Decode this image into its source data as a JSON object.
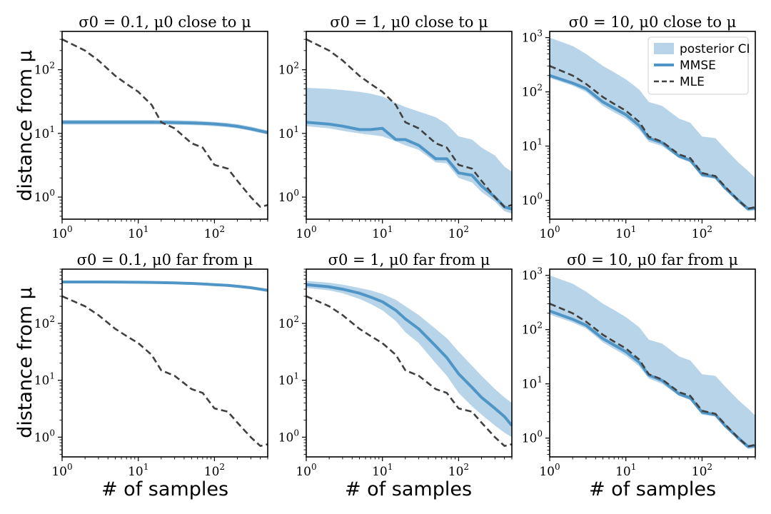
{
  "figure": {
    "ylabel": "distance from μ",
    "xlabel": "# of samples"
  },
  "colors": {
    "ci_fill": "#b7d4e8",
    "mmse": "#4f95c6",
    "mle": "#404040",
    "axes": "#000000"
  },
  "legend": {
    "placement": "top-right of panel 3",
    "entries": [
      {
        "label": "posterior CI",
        "kind": "band"
      },
      {
        "label": "MMSE",
        "kind": "line"
      },
      {
        "label": "MLE",
        "kind": "dashed"
      }
    ]
  },
  "chart_data": [
    {
      "type": "line",
      "log_x": true,
      "log_y": true,
      "title": "σ0 = 0.1, μ0 close to μ",
      "xlim": [
        1,
        500
      ],
      "ylim": [
        0.45,
        400
      ],
      "xticks": [
        "10^0",
        "10^1",
        "10^2"
      ],
      "yticks": [
        "10^0",
        "10^1",
        "10^2"
      ],
      "x": [
        1,
        2,
        3,
        5,
        7,
        10,
        15,
        20,
        30,
        50,
        70,
        100,
        150,
        200,
        300,
        400,
        500
      ],
      "series": [
        {
          "name": "posterior CI",
          "kind": "band",
          "lower": [
            13.8,
            13.8,
            13.8,
            13.8,
            13.8,
            13.8,
            13.8,
            13.8,
            13.7,
            13.5,
            13.3,
            13.0,
            12.5,
            12.0,
            11.0,
            10.2,
            9.6
          ],
          "upper": [
            16.3,
            16.3,
            16.3,
            16.3,
            16.3,
            16.3,
            16.3,
            16.2,
            16.1,
            15.9,
            15.6,
            15.2,
            14.6,
            14.0,
            12.8,
            11.8,
            11.1
          ]
        },
        {
          "name": "MMSE",
          "kind": "line",
          "values": [
            15,
            15,
            15,
            15,
            15,
            15,
            15,
            14.9,
            14.8,
            14.6,
            14.4,
            14.1,
            13.5,
            12.9,
            11.8,
            10.9,
            10.3
          ]
        },
        {
          "name": "MLE",
          "kind": "dashed",
          "values": [
            300,
            200,
            140,
            80,
            60,
            45,
            28,
            15,
            12,
            7,
            6,
            3.2,
            2.8,
            1.8,
            1.0,
            0.7,
            0.75
          ]
        }
      ]
    },
    {
      "type": "line",
      "log_x": true,
      "log_y": true,
      "title": "σ0 = 1, μ0 close to μ",
      "xlim": [
        1,
        500
      ],
      "ylim": [
        0.45,
        400
      ],
      "xticks": [
        "10^0",
        "10^1",
        "10^2"
      ],
      "yticks": [
        "10^0",
        "10^1",
        "10^2"
      ],
      "x": [
        1,
        2,
        3,
        5,
        7,
        10,
        15,
        20,
        30,
        50,
        70,
        100,
        150,
        200,
        300,
        400,
        500
      ],
      "series": [
        {
          "name": "posterior CI",
          "kind": "band",
          "lower": [
            13,
            12,
            11,
            10,
            9.5,
            9,
            7.5,
            6.5,
            5.5,
            3.5,
            3.4,
            2.0,
            1.7,
            1.2,
            0.85,
            0.6,
            0.55
          ],
          "upper": [
            52,
            50,
            48,
            45,
            42,
            38,
            30,
            26,
            22,
            18,
            14,
            9,
            8,
            6,
            4.5,
            3,
            2.5
          ]
        },
        {
          "name": "MMSE",
          "kind": "line",
          "values": [
            15,
            14,
            13,
            11.5,
            11.5,
            12,
            8,
            8,
            6.5,
            4,
            4,
            2.4,
            2.2,
            1.5,
            1.0,
            0.7,
            0.65
          ]
        },
        {
          "name": "MLE",
          "kind": "dashed",
          "values": [
            300,
            200,
            140,
            80,
            60,
            45,
            28,
            15,
            12,
            7,
            6,
            3.2,
            2.8,
            1.8,
            1.0,
            0.7,
            0.75
          ]
        }
      ]
    },
    {
      "type": "line",
      "log_x": true,
      "log_y": true,
      "title": "σ0 = 10, μ0 close to μ",
      "xlim": [
        1,
        500
      ],
      "ylim": [
        0.45,
        1300
      ],
      "xticks": [
        "10^0",
        "10^1",
        "10^2"
      ],
      "yticks": [
        "10^0",
        "10^1",
        "10^2",
        "10^3"
      ],
      "x": [
        1,
        2,
        3,
        5,
        7,
        10,
        15,
        20,
        30,
        50,
        70,
        100,
        150,
        200,
        300,
        400,
        500
      ],
      "series": [
        {
          "name": "posterior CI",
          "kind": "band",
          "lower": [
            180,
            130,
            100,
            55,
            42,
            32,
            20,
            12,
            10,
            6,
            5,
            2.7,
            2.5,
            1.6,
            0.9,
            0.63,
            0.65
          ],
          "upper": [
            1000,
            700,
            500,
            300,
            230,
            170,
            110,
            65,
            55,
            32,
            27,
            15,
            14,
            9,
            5,
            3.5,
            2.6
          ]
        },
        {
          "name": "MMSE",
          "kind": "line",
          "values": [
            200,
            145,
            115,
            65,
            50,
            38,
            24,
            14,
            11.5,
            6.5,
            5.5,
            3.0,
            2.7,
            1.7,
            1.0,
            0.7,
            0.72
          ]
        },
        {
          "name": "MLE",
          "kind": "dashed",
          "values": [
            300,
            200,
            140,
            80,
            60,
            45,
            28,
            15,
            12,
            7,
            6,
            3.2,
            2.8,
            1.8,
            1.0,
            0.7,
            0.75
          ]
        }
      ]
    },
    {
      "type": "line",
      "log_x": true,
      "log_y": true,
      "title": "σ0 = 0.1, μ0 far from μ",
      "xlim": [
        1,
        500
      ],
      "ylim": [
        0.45,
        900
      ],
      "xticks": [
        "10^0",
        "10^1",
        "10^2"
      ],
      "yticks": [
        "10^0",
        "10^1",
        "10^2"
      ],
      "x": [
        1,
        2,
        3,
        5,
        7,
        10,
        15,
        20,
        30,
        50,
        70,
        100,
        150,
        200,
        300,
        400,
        500
      ],
      "series": [
        {
          "name": "posterior CI",
          "kind": "band",
          "lower": [
            510,
            510,
            510,
            508,
            506,
            504,
            500,
            496,
            490,
            480,
            470,
            455,
            440,
            425,
            400,
            380,
            360
          ],
          "upper": [
            560,
            560,
            560,
            558,
            556,
            554,
            550,
            546,
            540,
            530,
            520,
            505,
            490,
            475,
            450,
            425,
            405
          ]
        },
        {
          "name": "MMSE",
          "kind": "line",
          "values": [
            535,
            535,
            535,
            533,
            531,
            529,
            525,
            521,
            515,
            505,
            495,
            480,
            465,
            450,
            425,
            400,
            380
          ]
        },
        {
          "name": "MLE",
          "kind": "dashed",
          "values": [
            300,
            200,
            140,
            80,
            60,
            45,
            28,
            15,
            12,
            7,
            6,
            3.2,
            2.8,
            1.8,
            1.0,
            0.7,
            0.75
          ]
        }
      ]
    },
    {
      "type": "line",
      "log_x": true,
      "log_y": true,
      "title": "σ0 = 1, μ0 far from μ",
      "xlim": [
        1,
        500
      ],
      "ylim": [
        0.45,
        900
      ],
      "xticks": [
        "10^0",
        "10^1",
        "10^2"
      ],
      "yticks": [
        "10^0",
        "10^1",
        "10^2"
      ],
      "x": [
        1,
        2,
        3,
        5,
        7,
        10,
        15,
        20,
        30,
        50,
        70,
        100,
        150,
        200,
        300,
        400,
        500
      ],
      "series": [
        {
          "name": "posterior CI",
          "kind": "band",
          "lower": [
            420,
            380,
            340,
            270,
            220,
            170,
            110,
            70,
            45,
            20,
            12,
            6,
            3.5,
            2.5,
            1.6,
            1.2,
            1.0
          ],
          "upper": [
            560,
            520,
            480,
            420,
            380,
            330,
            260,
            200,
            140,
            80,
            55,
            32,
            18,
            12,
            7,
            5,
            4
          ]
        },
        {
          "name": "MMSE",
          "kind": "line",
          "values": [
            480,
            440,
            400,
            340,
            290,
            240,
            170,
            120,
            80,
            40,
            25,
            13,
            7.5,
            5,
            3.2,
            2.3,
            1.6
          ]
        },
        {
          "name": "MLE",
          "kind": "dashed",
          "values": [
            300,
            200,
            140,
            80,
            60,
            45,
            28,
            15,
            12,
            7,
            6,
            3.2,
            2.8,
            1.8,
            1.0,
            0.7,
            0.75
          ]
        }
      ]
    },
    {
      "type": "line",
      "log_x": true,
      "log_y": true,
      "title": "σ0 = 10, μ0 far from μ",
      "xlim": [
        1,
        500
      ],
      "ylim": [
        0.45,
        1300
      ],
      "xticks": [
        "10^0",
        "10^1",
        "10^2"
      ],
      "yticks": [
        "10^0",
        "10^1",
        "10^2",
        "10^3"
      ],
      "x": [
        1,
        2,
        3,
        5,
        7,
        10,
        15,
        20,
        30,
        50,
        70,
        100,
        150,
        200,
        300,
        400,
        500
      ],
      "series": [
        {
          "name": "posterior CI",
          "kind": "band",
          "lower": [
            190,
            135,
            105,
            58,
            44,
            33,
            21,
            12.5,
            10,
            6,
            5,
            2.7,
            2.5,
            1.6,
            0.9,
            0.63,
            0.65
          ],
          "upper": [
            1000,
            700,
            500,
            300,
            230,
            170,
            110,
            65,
            55,
            32,
            27,
            15,
            14,
            9,
            5,
            3.5,
            2.6
          ]
        },
        {
          "name": "MMSE",
          "kind": "line",
          "values": [
            220,
            155,
            120,
            68,
            52,
            39,
            25,
            14.5,
            11.5,
            6.5,
            5.5,
            3.0,
            2.7,
            1.7,
            1.0,
            0.7,
            0.72
          ]
        },
        {
          "name": "MLE",
          "kind": "dashed",
          "values": [
            300,
            200,
            140,
            80,
            60,
            45,
            28,
            15,
            12,
            7,
            6,
            3.2,
            2.8,
            1.8,
            1.0,
            0.7,
            0.75
          ]
        }
      ]
    }
  ]
}
